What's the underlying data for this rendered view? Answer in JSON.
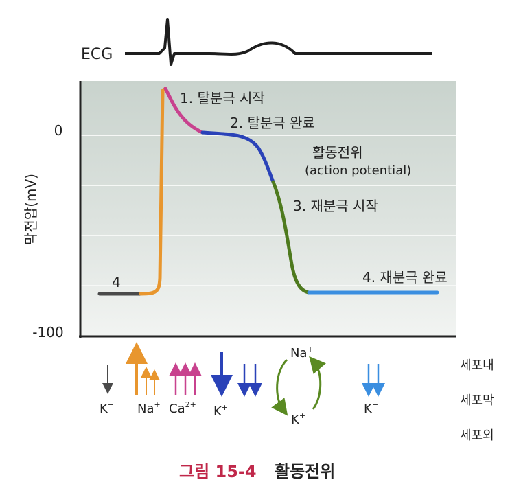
{
  "ecg_label": "ECG",
  "y_axis": {
    "label": "막전압(mV)",
    "tick_labels": [
      "0",
      "-100"
    ]
  },
  "phases": {
    "p1": "1. 탈분극 시작",
    "p2": "2. 탈분극 완료",
    "p3": "3. 재분극 시작",
    "p4": "4. 재분극 완료",
    "resting": "4"
  },
  "curve_title": {
    "korean": "활동전위",
    "english": "(action potential)"
  },
  "ions": {
    "k1": "K",
    "na": "Na",
    "ca": "Ca",
    "k2": "K",
    "na_cycle": "Na",
    "k_cycle": "K",
    "k3": "K",
    "plus": "+",
    "ca_charge": "2+"
  },
  "membrane_labels": [
    "세포내",
    "세포막",
    "세포외"
  ],
  "caption": {
    "figure": "그림 15-4",
    "title": "활동전위"
  },
  "colors": {
    "resting": "#4a4a4a",
    "depolarization_rise": "#e8962e",
    "overshoot": "#c8428e",
    "plateau": "#2a42b8",
    "repolarization": "#4e7a1e",
    "final": "#3a8ee0",
    "background_band": "#d4dcd7",
    "caption": "#c0284a"
  }
}
